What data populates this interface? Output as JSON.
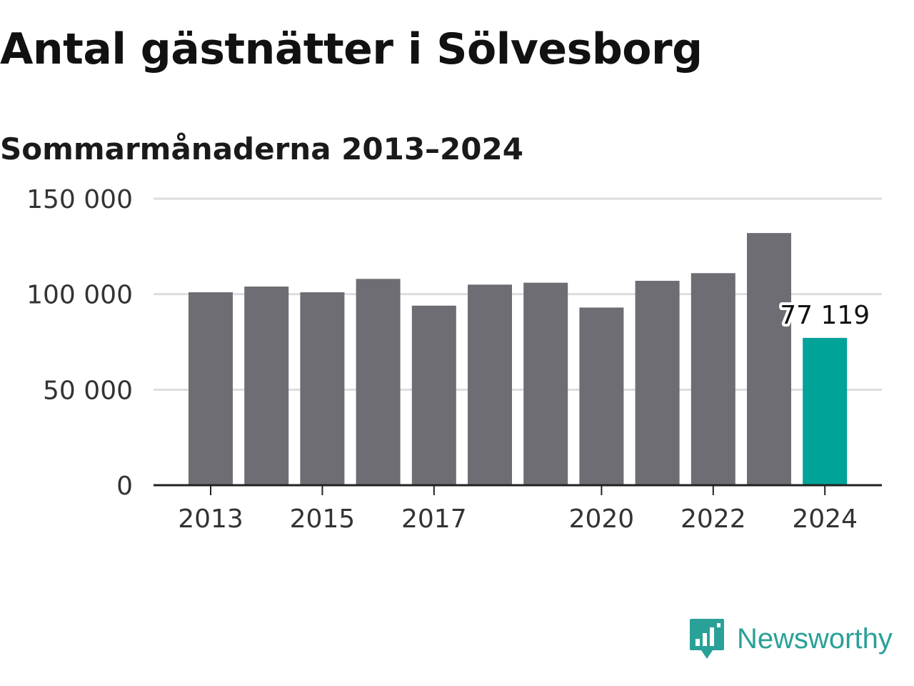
{
  "header": {
    "title": "Antal gästnätter i Sölvesborg",
    "subtitle": "Sommarmånaderna 2013–2024"
  },
  "chart_data": {
    "type": "bar",
    "categories": [
      "2013",
      "2014",
      "2015",
      "2016",
      "2017",
      "2018",
      "2019",
      "2020",
      "2021",
      "2022",
      "2023",
      "2024"
    ],
    "values": [
      101000,
      104000,
      101000,
      108000,
      94000,
      105000,
      106000,
      93000,
      107000,
      111000,
      132000,
      77119
    ],
    "highlight_index": 11,
    "highlight_label": "77 119",
    "ylim": [
      0,
      150000
    ],
    "yticks": [
      0,
      50000,
      100000,
      150000
    ],
    "ytick_labels": [
      "0",
      "50 000",
      "100 000",
      "150 000"
    ],
    "xtick_labels": [
      "2013",
      "2015",
      "2017",
      "2020",
      "2022",
      "2024"
    ],
    "xlabel": "",
    "ylabel": "",
    "grid": true,
    "colors": {
      "bar": "#6e6d74",
      "highlight": "#00a398",
      "grid": "#dddddd",
      "axis": "#222222"
    }
  },
  "brand": {
    "name": "Newsworthy",
    "color": "#2aa198",
    "icon": "newsworthy-logo-icon"
  }
}
